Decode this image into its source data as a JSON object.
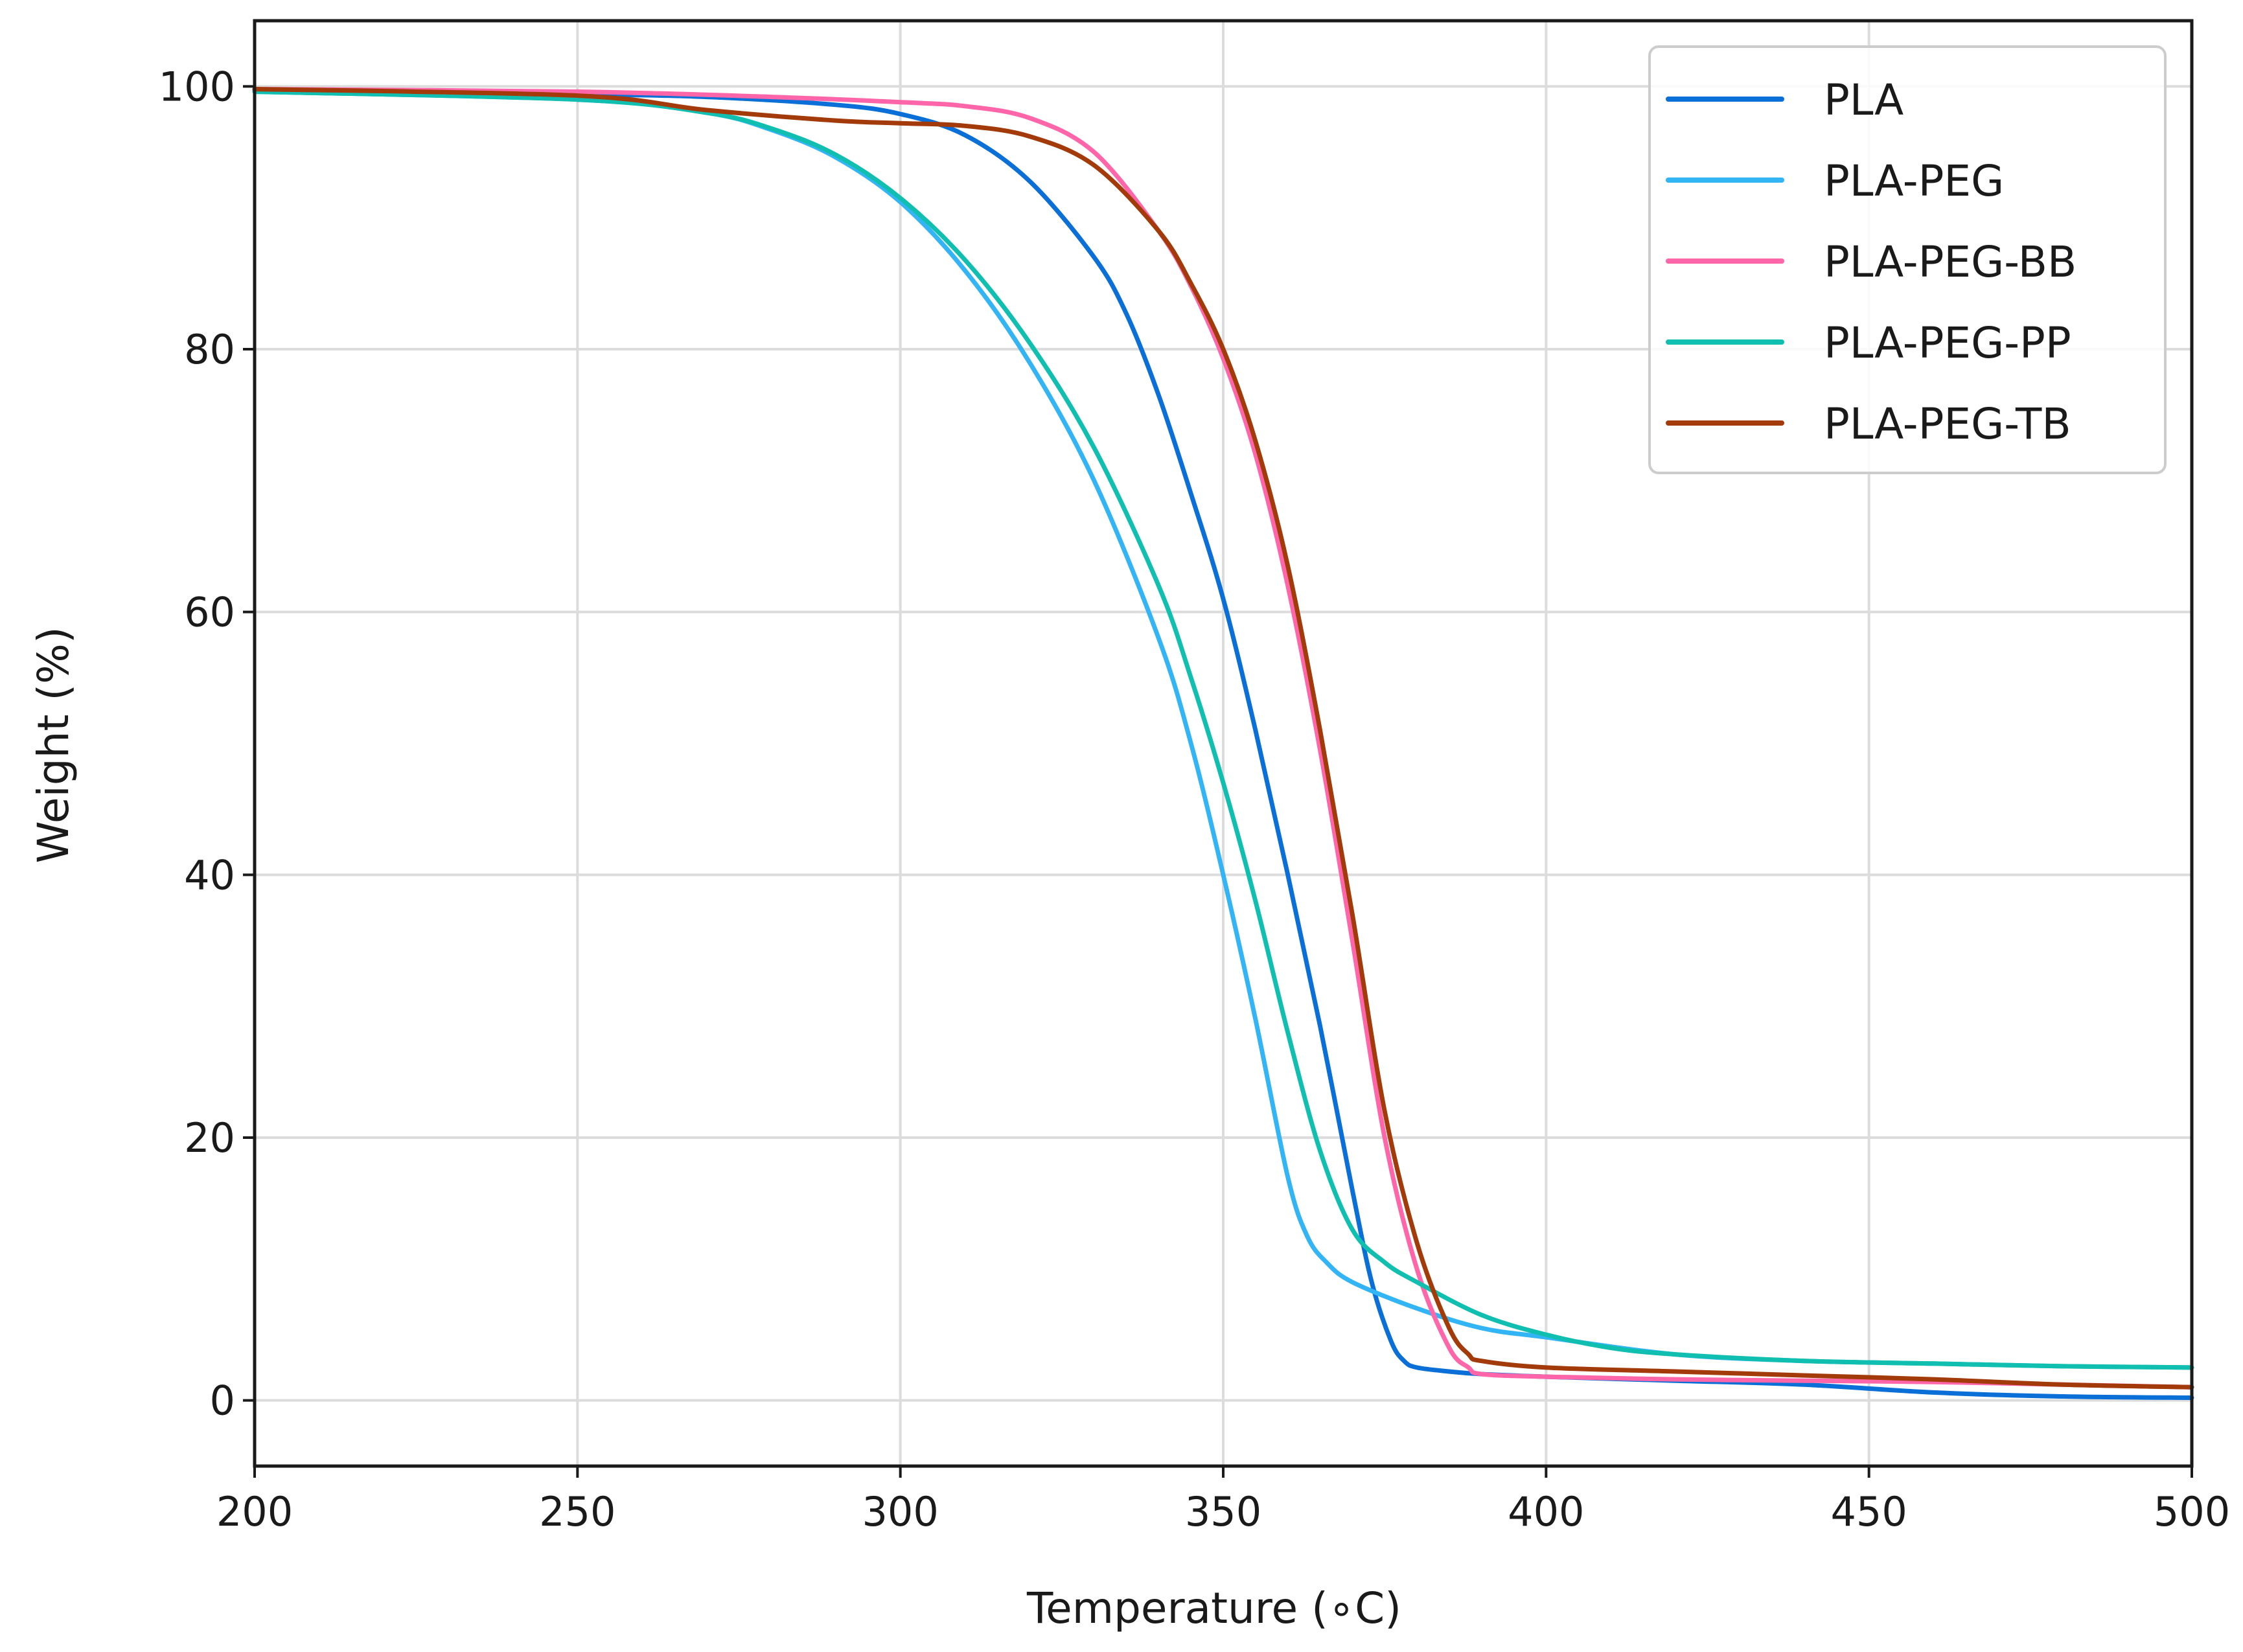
{
  "chart_data": {
    "type": "line",
    "title": "",
    "xlabel": "Temperature (∘C)",
    "ylabel": "Weight (%)",
    "xlim": [
      200,
      500
    ],
    "ylim": [
      -5,
      105
    ],
    "xticks": [
      200,
      250,
      300,
      350,
      400,
      450,
      500
    ],
    "yticks": [
      0,
      20,
      40,
      60,
      80,
      100
    ],
    "xtick_labels": [
      "200",
      "250",
      "300",
      "350",
      "400",
      "450",
      "500"
    ],
    "ytick_labels": [
      "0",
      "20",
      "40",
      "60",
      "80",
      "100"
    ],
    "grid": true,
    "legend_position": "top-right",
    "series": [
      {
        "name": "PLA",
        "color": "#0a6fd6",
        "x": [
          200,
          250,
          270,
          290,
          300,
          310,
          320,
          330,
          335,
          340,
          345,
          350,
          355,
          360,
          365,
          370,
          373,
          376,
          378,
          380,
          385,
          390,
          400,
          420,
          440,
          460,
          480,
          500
        ],
        "y": [
          99.7,
          99.4,
          99.2,
          98.6,
          97.9,
          96.3,
          92.8,
          87.0,
          82.7,
          76.5,
          69.0,
          61.0,
          51.0,
          40.0,
          28.5,
          16.0,
          9.0,
          4.5,
          3.0,
          2.5,
          2.2,
          2.0,
          1.8,
          1.5,
          1.2,
          0.6,
          0.3,
          0.2
        ]
      },
      {
        "name": "PLA-PEG",
        "color": "#33b5f5",
        "x": [
          200,
          250,
          270,
          280,
          290,
          300,
          310,
          320,
          330,
          340,
          345,
          350,
          355,
          360,
          363,
          366,
          370,
          380,
          390,
          400,
          420,
          440,
          460,
          480,
          500
        ],
        "y": [
          99.6,
          99.0,
          98.0,
          96.7,
          94.6,
          91.2,
          86.0,
          79.0,
          70.0,
          58.0,
          50.0,
          40.0,
          29.0,
          17.0,
          12.5,
          10.5,
          9.0,
          7.0,
          5.5,
          4.8,
          3.5,
          3.0,
          2.8,
          2.6,
          2.5
        ]
      },
      {
        "name": "PLA-PEG-BB",
        "color": "#ff66aa",
        "x": [
          200,
          250,
          280,
          300,
          310,
          320,
          330,
          340,
          345,
          350,
          355,
          360,
          365,
          370,
          375,
          380,
          385,
          388,
          390,
          400,
          420,
          440,
          460,
          480,
          500
        ],
        "y": [
          99.8,
          99.6,
          99.2,
          98.8,
          98.5,
          97.6,
          95.0,
          89.0,
          84.8,
          79.3,
          72.0,
          62.0,
          49.5,
          35.0,
          20.0,
          10.0,
          4.0,
          2.5,
          2.0,
          1.8,
          1.6,
          1.5,
          1.4,
          1.2,
          1.0
        ]
      },
      {
        "name": "PLA-PEG-PP",
        "color": "#11bfb0",
        "x": [
          200,
          250,
          270,
          280,
          290,
          300,
          310,
          320,
          330,
          340,
          345,
          350,
          355,
          360,
          365,
          370,
          375,
          380,
          390,
          400,
          410,
          420,
          440,
          460,
          480,
          500
        ],
        "y": [
          99.6,
          99.0,
          98.0,
          96.8,
          94.8,
          91.5,
          86.8,
          80.5,
          72.5,
          62.0,
          55.0,
          47.0,
          38.0,
          28.0,
          19.0,
          13.0,
          10.5,
          9.0,
          6.5,
          5.0,
          4.0,
          3.5,
          3.0,
          2.8,
          2.6,
          2.5
        ]
      },
      {
        "name": "PLA-PEG-TB",
        "color": "#a33a0a",
        "x": [
          200,
          250,
          270,
          290,
          300,
          310,
          320,
          330,
          340,
          345,
          350,
          355,
          360,
          365,
          370,
          375,
          380,
          385,
          388,
          390,
          400,
          420,
          440,
          460,
          480,
          500
        ],
        "y": [
          99.8,
          99.3,
          98.2,
          97.4,
          97.2,
          97.0,
          96.2,
          94.0,
          89.0,
          85.0,
          80.0,
          73.0,
          63.5,
          51.0,
          37.0,
          22.0,
          12.0,
          5.5,
          3.5,
          3.0,
          2.5,
          2.2,
          1.9,
          1.6,
          1.2,
          1.0
        ]
      }
    ]
  }
}
